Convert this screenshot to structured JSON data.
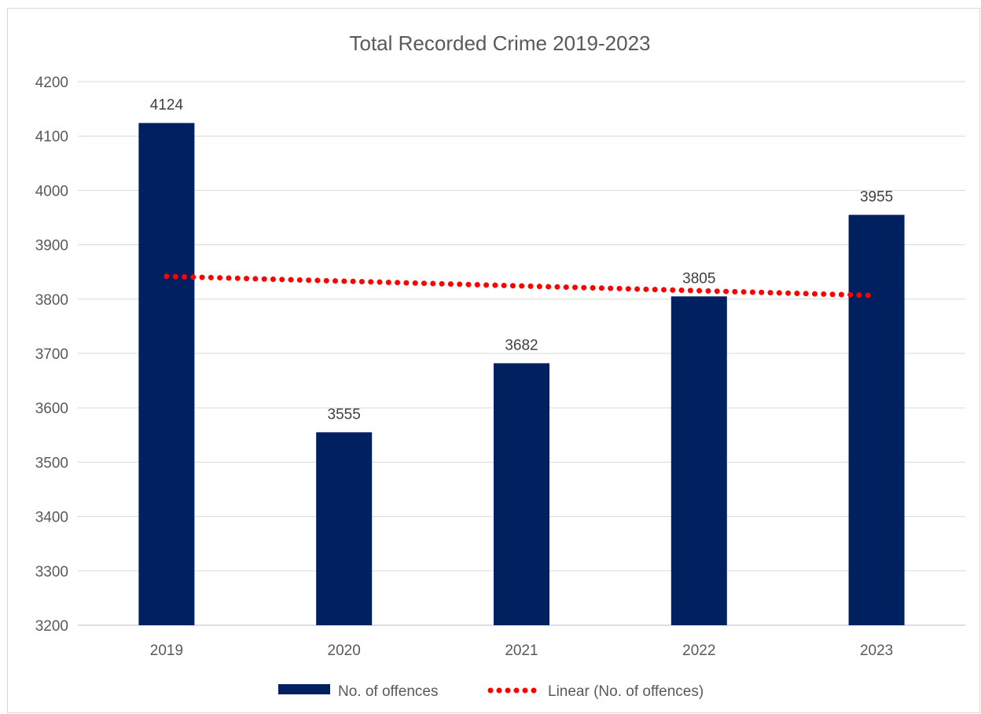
{
  "chart_data": {
    "type": "bar",
    "title": "Total Recorded Crime 2019-2023",
    "xlabel": "",
    "ylabel": "",
    "categories": [
      "2019",
      "2020",
      "2021",
      "2022",
      "2023"
    ],
    "series": [
      {
        "name": "No. of offences",
        "values": [
          4124,
          3555,
          3682,
          3805,
          3955
        ],
        "color": "#002060",
        "data_labels": true
      }
    ],
    "trendline": {
      "name": "Linear (No. of offences)",
      "type": "linear",
      "color": "#ff0000",
      "style": "dotted"
    },
    "ylim": [
      3200,
      4200
    ],
    "yticks": [
      3200,
      3300,
      3400,
      3500,
      3600,
      3700,
      3800,
      3900,
      4000,
      4100,
      4200
    ],
    "grid": true,
    "legend_position": "bottom"
  }
}
